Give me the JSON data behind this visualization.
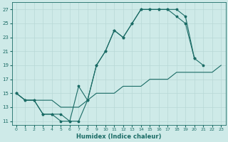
{
  "xlabel": "Humidex (Indice chaleur)",
  "bg_color": "#ceeae8",
  "grid_color": "#b8d8d6",
  "line_color": "#1a6b65",
  "xlim": [
    -0.5,
    23.5
  ],
  "ylim": [
    10.5,
    28
  ],
  "yticks": [
    11,
    13,
    15,
    17,
    19,
    21,
    23,
    25,
    27
  ],
  "xticks": [
    0,
    1,
    2,
    3,
    4,
    5,
    6,
    7,
    8,
    9,
    10,
    11,
    12,
    13,
    14,
    15,
    16,
    17,
    18,
    19,
    20,
    21,
    22,
    23
  ],
  "line1_x": [
    0,
    1,
    2,
    3,
    4,
    5,
    6,
    7,
    8,
    9,
    10,
    11,
    12,
    13,
    14,
    15,
    16,
    17,
    18,
    19,
    20,
    21
  ],
  "line1_y": [
    15,
    14,
    14,
    12,
    12,
    11,
    11,
    16,
    14,
    19,
    21,
    24,
    23,
    25,
    27,
    27,
    27,
    27,
    27,
    26,
    20,
    19
  ],
  "line2_x": [
    0,
    1,
    2,
    3,
    4,
    5,
    6,
    7,
    8,
    9,
    10,
    11,
    12,
    13,
    14,
    15,
    16,
    17,
    18,
    19,
    20
  ],
  "line2_y": [
    15,
    14,
    14,
    12,
    12,
    12,
    11,
    11,
    14,
    19,
    21,
    24,
    23,
    25,
    27,
    27,
    27,
    27,
    26,
    25,
    20
  ],
  "line3_x": [
    0,
    1,
    2,
    3,
    4,
    5,
    6,
    7,
    8,
    9,
    10,
    11,
    12,
    13,
    14,
    15,
    16,
    17,
    18,
    19,
    20,
    21,
    22,
    23
  ],
  "line3_y": [
    15,
    14,
    14,
    14,
    14,
    13,
    13,
    13,
    14,
    15,
    15,
    15,
    16,
    16,
    16,
    17,
    17,
    17,
    18,
    18,
    18,
    18,
    18,
    19
  ],
  "tick_fontsize": 5,
  "xlabel_fontsize": 6
}
